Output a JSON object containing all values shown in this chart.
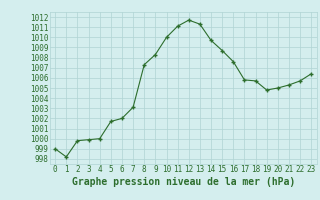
{
  "x": [
    0,
    1,
    2,
    3,
    4,
    5,
    6,
    7,
    8,
    9,
    10,
    11,
    12,
    13,
    14,
    15,
    16,
    17,
    18,
    19,
    20,
    21,
    22,
    23
  ],
  "y": [
    999.0,
    998.2,
    999.8,
    999.9,
    1000.0,
    1001.7,
    1002.0,
    1003.1,
    1007.3,
    1008.3,
    1010.0,
    1011.1,
    1011.7,
    1011.3,
    1009.7,
    1008.7,
    1007.6,
    1005.8,
    1005.7,
    1004.8,
    1005.0,
    1005.3,
    1005.7,
    1006.4
  ],
  "line_color": "#2d6e2d",
  "marker_color": "#2d6e2d",
  "bg_color": "#d4eeee",
  "grid_color": "#b0d4d4",
  "title": "Graphe pression niveau de la mer (hPa)",
  "ylim_min": 997.5,
  "ylim_max": 1012.5,
  "yticks": [
    998,
    999,
    1000,
    1001,
    1002,
    1003,
    1004,
    1005,
    1006,
    1007,
    1008,
    1009,
    1010,
    1011,
    1012
  ],
  "xticks": [
    0,
    1,
    2,
    3,
    4,
    5,
    6,
    7,
    8,
    9,
    10,
    11,
    12,
    13,
    14,
    15,
    16,
    17,
    18,
    19,
    20,
    21,
    22,
    23
  ],
  "xtick_labels": [
    "0",
    "1",
    "2",
    "3",
    "4",
    "5",
    "6",
    "7",
    "8",
    "9",
    "10",
    "11",
    "12",
    "13",
    "14",
    "15",
    "16",
    "17",
    "18",
    "19",
    "20",
    "21",
    "22",
    "23"
  ],
  "title_fontsize": 7.0,
  "tick_fontsize": 5.5
}
